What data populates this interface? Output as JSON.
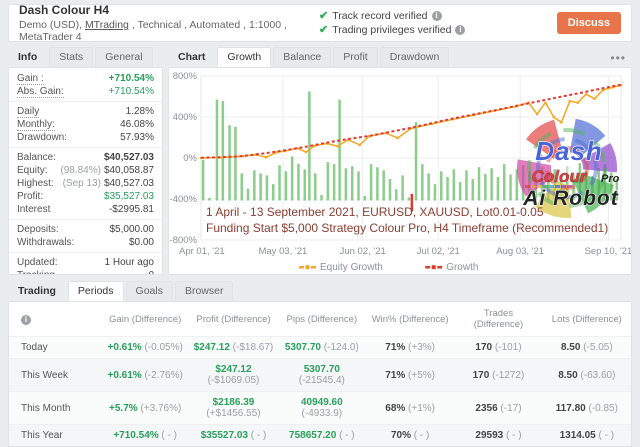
{
  "theme": {
    "green": "#28a05c",
    "bar_green": "#7fc87f",
    "growth_red": "#e13b30",
    "equity_orange": "#f5a623",
    "check_green": "#2eac52",
    "discuss_orange": "#e8744a",
    "annotation_maroon": "#8b3e32"
  },
  "header": {
    "title": "Dash Colour H4",
    "subtitle_prefix": "Demo (USD), ",
    "subtitle_link": "MTrading",
    "subtitle_rest": " , Technical , Automated , 1:1000 , MetaTrader 4",
    "verified": [
      "Track record verified",
      "Trading privileges verified"
    ],
    "discuss_label": "Discuss"
  },
  "info_panel": {
    "tabs": [
      {
        "label": "Info",
        "style": "label-active"
      },
      {
        "label": "Stats",
        "style": "plain"
      },
      {
        "label": "General",
        "style": "plain"
      }
    ],
    "rows": [
      {
        "label": "Gain :",
        "value": "+710.54%",
        "style": "green-bold",
        "dotted": true
      },
      {
        "label": "Abs. Gain:",
        "value": "+710.54%",
        "style": "green",
        "dotted": true
      },
      {
        "divider": true
      },
      {
        "label": "Daily",
        "value": "1.28%",
        "dotted": true
      },
      {
        "label": "Monthly:",
        "value": "46.08%",
        "dotted": true
      },
      {
        "label": "Drawdown:",
        "value": "57.93%"
      },
      {
        "divider": true
      },
      {
        "label": "Balance:",
        "value": "$40,527.03",
        "style": "bold"
      },
      {
        "label": "Equity:",
        "pre": "(98.84%)",
        "value": "$40,058.87"
      },
      {
        "label": "Highest:",
        "pre": "(Sep 13)",
        "value": "$40,527.03"
      },
      {
        "label": "Profit:",
        "value": "$35,527.03",
        "style": "green"
      },
      {
        "label": "Interest",
        "value": "-$2995.81"
      },
      {
        "divider": true
      },
      {
        "label": "Deposits:",
        "value": "$5,000.00"
      },
      {
        "label": "Withdrawals:",
        "value": "$0.00"
      },
      {
        "divider": true
      },
      {
        "label": "Updated:",
        "value": "1 Hour ago"
      },
      {
        "label": "Tracking",
        "value": "0"
      }
    ]
  },
  "chart_panel": {
    "tabs": [
      {
        "label": "Chart",
        "style": "label-active"
      },
      {
        "label": "Growth",
        "style": "selected"
      },
      {
        "label": "Balance",
        "style": "plain"
      },
      {
        "label": "Profit",
        "style": "plain"
      },
      {
        "label": "Drawdown",
        "style": "plain"
      }
    ],
    "menu_icon": "•••",
    "chart_data": {
      "type": "bar+line",
      "y_ticks": [
        {
          "v": 800,
          "label": "800%"
        },
        {
          "v": 400,
          "label": "400%"
        },
        {
          "v": 0,
          "label": "0%"
        },
        {
          "v": -400,
          "label": "-400%"
        },
        {
          "v": -800,
          "label": "-800%"
        }
      ],
      "y_range": [
        -800,
        800
      ],
      "x_ticks": [
        {
          "f": 0.002,
          "label": "Apr 01, '21"
        },
        {
          "f": 0.195,
          "label": "May 03, '21"
        },
        {
          "f": 0.385,
          "label": "Jun 02, '21"
        },
        {
          "f": 0.565,
          "label": "Jul 02, '21"
        },
        {
          "f": 0.76,
          "label": "Aug 03, '21"
        },
        {
          "f": 0.97,
          "label": "Sep 10, '21"
        }
      ],
      "annotation": [
        "1 April - 13 September 2021, EURUSD, XAUUSD, Lot0.01-0.05",
        "Funding Start $5,000 Strategy Colour Pro, H4 Timeframe (Recommended1)"
      ],
      "legend": [
        {
          "label": "Equity Growth",
          "color": "#f5a623"
        },
        {
          "label": "Growth",
          "color": "#e13b30"
        }
      ],
      "bars": {
        "baseline_pct": -415,
        "points": [
          [
            0.005,
            -20
          ],
          [
            0.02,
            -390
          ],
          [
            0.038,
            570
          ],
          [
            0.052,
            555
          ],
          [
            0.068,
            320
          ],
          [
            0.082,
            305
          ],
          [
            0.097,
            -150
          ],
          [
            0.112,
            -300
          ],
          [
            0.127,
            -120
          ],
          [
            0.142,
            -150
          ],
          [
            0.157,
            -170
          ],
          [
            0.172,
            -255
          ],
          [
            0.187,
            -70
          ],
          [
            0.202,
            -130
          ],
          [
            0.217,
            15
          ],
          [
            0.232,
            -55
          ],
          [
            0.247,
            -110
          ],
          [
            0.258,
            650
          ],
          [
            0.272,
            -150
          ],
          [
            0.287,
            -360
          ],
          [
            0.302,
            -40
          ],
          [
            0.317,
            -60
          ],
          [
            0.33,
            570
          ],
          [
            0.345,
            -100
          ],
          [
            0.36,
            -80
          ],
          [
            0.375,
            -130
          ],
          [
            0.39,
            -370
          ],
          [
            0.405,
            -60
          ],
          [
            0.42,
            -90
          ],
          [
            0.435,
            -120
          ],
          [
            0.45,
            -205
          ],
          [
            0.465,
            -305
          ],
          [
            0.48,
            -170
          ],
          [
            0.495,
            -385
          ],
          [
            0.512,
            350
          ],
          [
            0.527,
            -60
          ],
          [
            0.542,
            -150
          ],
          [
            0.557,
            -255
          ],
          [
            0.572,
            -130
          ],
          [
            0.587,
            -185
          ],
          [
            0.602,
            -110
          ],
          [
            0.617,
            -235
          ],
          [
            0.632,
            -120
          ],
          [
            0.647,
            -205
          ],
          [
            0.662,
            -90
          ],
          [
            0.677,
            -155
          ],
          [
            0.692,
            -100
          ],
          [
            0.707,
            -185
          ],
          [
            0.722,
            -60
          ],
          [
            0.737,
            -160
          ],
          [
            0.752,
            -110
          ],
          [
            0.767,
            -70
          ],
          [
            0.782,
            -130
          ],
          [
            0.797,
            -185
          ],
          [
            0.812,
            -90
          ],
          [
            0.827,
            -140
          ],
          [
            0.842,
            -110
          ],
          [
            0.857,
            -175
          ],
          [
            0.872,
            -80
          ],
          [
            0.887,
            -150
          ],
          [
            0.902,
            -50
          ],
          [
            0.917,
            -130
          ],
          [
            0.932,
            -175
          ],
          [
            0.947,
            -100
          ],
          [
            0.962,
            -60
          ],
          [
            0.977,
            -140
          ],
          [
            0.99,
            -205
          ]
        ]
      },
      "red_bar": {
        "f": 0.502,
        "top_pct": -350,
        "bottom_pct": -520
      },
      "growth_line": [
        [
          0,
          2
        ],
        [
          0.05,
          8
        ],
        [
          0.1,
          20
        ],
        [
          0.15,
          45
        ],
        [
          0.2,
          75
        ],
        [
          0.25,
          110
        ],
        [
          0.3,
          150
        ],
        [
          0.35,
          185
        ],
        [
          0.4,
          215
        ],
        [
          0.45,
          255
        ],
        [
          0.5,
          295
        ],
        [
          0.55,
          340
        ],
        [
          0.6,
          385
        ],
        [
          0.65,
          425
        ],
        [
          0.7,
          465
        ],
        [
          0.75,
          508
        ],
        [
          0.8,
          550
        ],
        [
          0.85,
          592
        ],
        [
          0.9,
          632
        ],
        [
          0.95,
          675
        ],
        [
          1,
          715
        ]
      ],
      "equity_line": [
        [
          0,
          0
        ],
        [
          0.05,
          5
        ],
        [
          0.1,
          18
        ],
        [
          0.13,
          32
        ],
        [
          0.155,
          8
        ],
        [
          0.18,
          55
        ],
        [
          0.2,
          68
        ],
        [
          0.23,
          95
        ],
        [
          0.25,
          58
        ],
        [
          0.27,
          118
        ],
        [
          0.3,
          142
        ],
        [
          0.325,
          115
        ],
        [
          0.35,
          178
        ],
        [
          0.378,
          128
        ],
        [
          0.4,
          212
        ],
        [
          0.44,
          243
        ],
        [
          0.468,
          195
        ],
        [
          0.5,
          288
        ],
        [
          0.55,
          333
        ],
        [
          0.6,
          378
        ],
        [
          0.65,
          420
        ],
        [
          0.7,
          462
        ],
        [
          0.75,
          503
        ],
        [
          0.78,
          540
        ],
        [
          0.8,
          428
        ],
        [
          0.82,
          540
        ],
        [
          0.84,
          398
        ],
        [
          0.858,
          348
        ],
        [
          0.878,
          555
        ],
        [
          0.897,
          540
        ],
        [
          0.917,
          622
        ],
        [
          0.937,
          578
        ],
        [
          0.957,
          662
        ],
        [
          0.98,
          690
        ],
        [
          1,
          708
        ]
      ],
      "watermark": {
        "text1": "Dash",
        "text2": "Colour",
        "text2_suffix": "Pro",
        "text3": "Ai Robot"
      }
    }
  },
  "bottom_panel": {
    "tabs": [
      {
        "label": "Trading",
        "style": "label-active"
      },
      {
        "label": "Periods",
        "style": "selected"
      },
      {
        "label": "Goals",
        "style": "plain"
      },
      {
        "label": "Browser",
        "style": "plain"
      }
    ],
    "columns": [
      "Gain (Difference)",
      "Profit (Difference)",
      "Pips (Difference)",
      "Win% (Difference)",
      "Trades (Difference)",
      "Lots (Difference)"
    ],
    "rows": [
      {
        "label": "Today",
        "cells": [
          [
            "+0.61%",
            "(-0.05%)"
          ],
          [
            "$247.12",
            "(-$18.67)"
          ],
          [
            "5307.70",
            "(-124.0)"
          ],
          [
            "71%",
            "(+3%)"
          ],
          [
            "170",
            "(-101)"
          ],
          [
            "8.50",
            "(-5.05)"
          ]
        ]
      },
      {
        "label": "This Week",
        "cells": [
          [
            "+0.61%",
            "(-2.76%)"
          ],
          [
            "$247.12",
            "(-$1069.05)"
          ],
          [
            "5307.70",
            "(-21545.4)"
          ],
          [
            "71%",
            "(+5%)"
          ],
          [
            "170",
            "(-1272)"
          ],
          [
            "8.50",
            "(-63.60)"
          ]
        ]
      },
      {
        "label": "This Month",
        "cells": [
          [
            "+5.7%",
            "(+3.76%)"
          ],
          [
            "$2186.39",
            "(+$1456.55)"
          ],
          [
            "40949.60",
            "(-4933.9)"
          ],
          [
            "68%",
            "(+1%)"
          ],
          [
            "2356",
            "(-17)"
          ],
          [
            "117.80",
            "(-0.85)"
          ]
        ]
      },
      {
        "label": "This Year",
        "cells": [
          [
            "+710.54%",
            "( - )"
          ],
          [
            "$35527.03",
            "( - )"
          ],
          [
            "758657.20",
            "( - )"
          ],
          [
            "70%",
            "( - )"
          ],
          [
            "29593",
            "( - )"
          ],
          [
            "1314.05",
            "( - )"
          ]
        ]
      }
    ]
  }
}
